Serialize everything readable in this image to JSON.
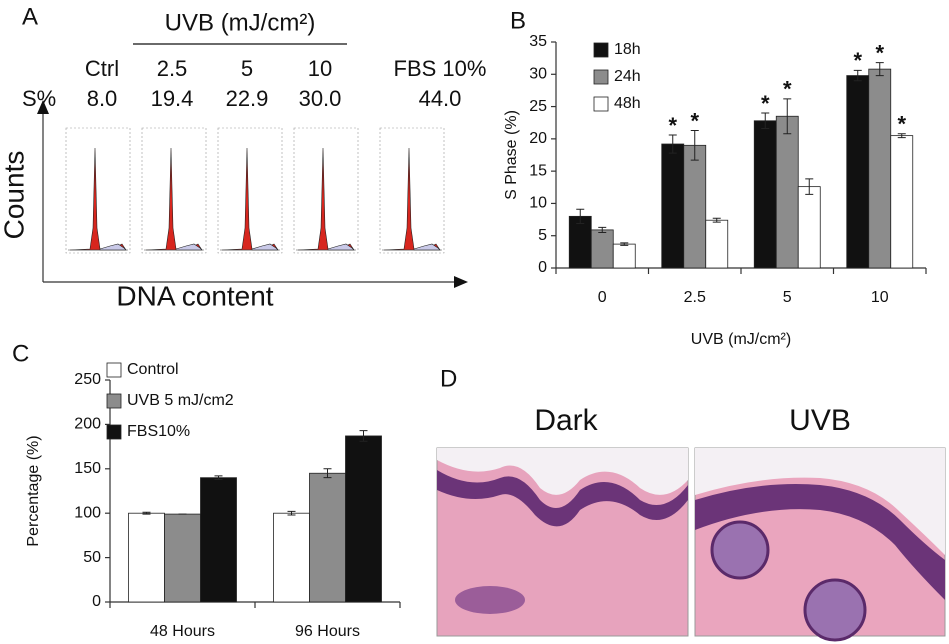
{
  "panel_labels": [
    "A",
    "B",
    "C",
    "D"
  ],
  "panel_a": {
    "title": "UVB (mJ/cm²)",
    "columns": [
      "Ctrl",
      "2.5",
      "5",
      "10",
      "FBS 10%"
    ],
    "row_label": "S%",
    "row_values": [
      "8.0",
      "19.4",
      "22.9",
      "30.0",
      "44.0"
    ],
    "y_label": "Counts",
    "x_label": "DNA content"
  },
  "chart_data": [
    {
      "type": "bar",
      "categories": [
        "0",
        "2.5",
        "5",
        "10"
      ],
      "series": [
        {
          "name": "18h",
          "color": "#111111",
          "values": [
            8,
            19.2,
            22.8,
            29.8
          ],
          "errors": [
            1.1,
            1.4,
            1.2,
            0.8
          ],
          "significance": [
            null,
            "*",
            "*",
            "*"
          ]
        },
        {
          "name": "24h",
          "color": "#8c8c8c",
          "values": [
            5.9,
            19,
            23.5,
            30.8
          ],
          "errors": [
            0.4,
            2.3,
            2.7,
            1.0
          ],
          "significance": [
            null,
            "*",
            "*",
            "*"
          ]
        },
        {
          "name": "48h",
          "color": "#ffffff",
          "values": [
            3.7,
            7.4,
            12.6,
            20.5
          ],
          "errors": [
            0.2,
            0.3,
            1.2,
            0.3
          ],
          "significance": [
            null,
            null,
            null,
            "*"
          ]
        }
      ],
      "ylim": [
        0,
        35
      ],
      "yticks": [
        0,
        5,
        10,
        15,
        20,
        25,
        30,
        35
      ],
      "y_label": "S Phase (%)",
      "x_label": "UVB (mJ/cm²)",
      "legend": "top-left"
    },
    {
      "type": "bar",
      "categories": [
        "48 Hours",
        "96 Hours"
      ],
      "series": [
        {
          "name": "Control",
          "color": "#ffffff",
          "values": [
            100,
            100
          ],
          "errors": [
            1,
            2
          ]
        },
        {
          "name": "UVB 5 mJ/cm2",
          "color": "#8c8c8c",
          "values": [
            99,
            145
          ],
          "errors": [
            0,
            5
          ]
        },
        {
          "name": "FBS10%",
          "color": "#111111",
          "values": [
            140,
            187
          ],
          "errors": [
            2,
            6
          ]
        }
      ],
      "ylim": [
        0,
        250
      ],
      "yticks": [
        0,
        50,
        100,
        150,
        200,
        250
      ],
      "y_label": "Percentage (%)",
      "legend": "top-left"
    }
  ],
  "panel_d": {
    "labels": [
      "Dark",
      "UVB"
    ]
  }
}
